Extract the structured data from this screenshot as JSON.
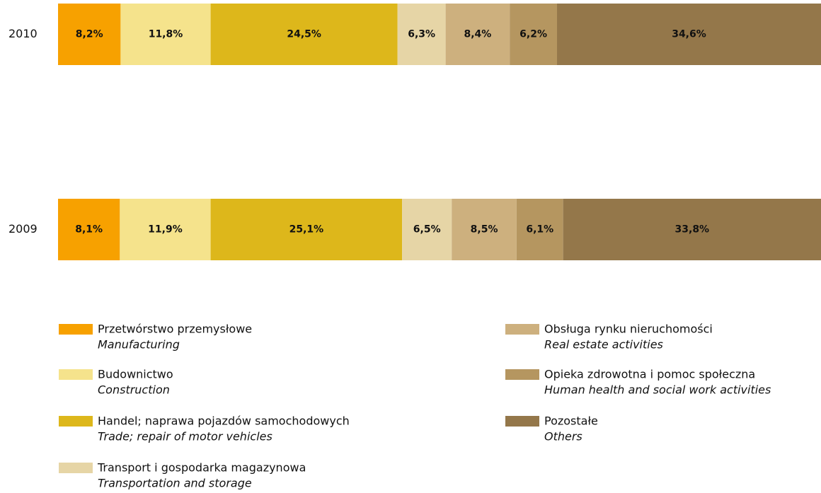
{
  "chart_data": {
    "type": "stacked-bar",
    "categories": [
      "2010",
      "2009"
    ],
    "series": [
      {
        "name": "Przetwórstwo przemysłowe",
        "name_en": "Manufacturing",
        "color": "#f7a100",
        "values": [
          8.2,
          8.1
        ],
        "value_labels": [
          "8,2%",
          "8,1%"
        ]
      },
      {
        "name": "Budownictwo",
        "name_en": "Construction",
        "color": "#f5e38c",
        "values": [
          11.8,
          11.9
        ],
        "value_labels": [
          "11,8%",
          "11,9%"
        ]
      },
      {
        "name": "Handel; naprawa pojazdów samochodowych",
        "name_en": "Trade; repair of motor vehicles",
        "color": "#ddb71b",
        "values": [
          24.5,
          25.1
        ],
        "value_labels": [
          "24,5%",
          "25,1%"
        ]
      },
      {
        "name": "Transport i gospodarka magazynowa",
        "name_en": "Transportation and storage",
        "color": "#e6d5a6",
        "values": [
          6.3,
          6.5
        ],
        "value_labels": [
          "6,3%",
          "6,5%"
        ]
      },
      {
        "name": "Obsługa rynku nieruchomości",
        "name_en": "Real estate activities",
        "color": "#cdb07e",
        "values": [
          8.4,
          8.5
        ],
        "value_labels": [
          "8,4%",
          "8,5%"
        ]
      },
      {
        "name": "Opieka zdrowotna i pomoc społeczna",
        "name_en": "Human health and social work activities",
        "color": "#b59660",
        "values": [
          6.2,
          6.1
        ],
        "value_labels": [
          "6,2%",
          "6,1%"
        ]
      },
      {
        "name": "Pozostałe",
        "name_en": "Others",
        "color": "#94774a",
        "values": [
          34.6,
          33.8
        ],
        "value_labels": [
          "34,6%",
          "33,8%"
        ]
      }
    ]
  }
}
